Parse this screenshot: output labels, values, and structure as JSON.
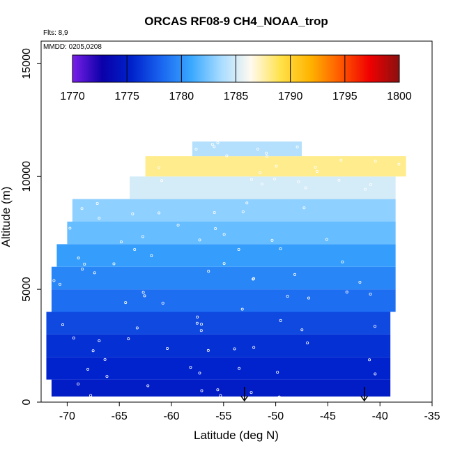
{
  "chart_data": {
    "type": "heatmap",
    "title": "ORCAS RF08-9 CH4_NOAA_trop",
    "xlabel": "Latitude (deg N)",
    "ylabel": "Altitude (m)",
    "xlim": [
      -72.5,
      -35
    ],
    "ylim": [
      0,
      16000
    ],
    "x_ticks": [
      -70,
      -65,
      -60,
      -55,
      -50,
      -45,
      -40,
      -35
    ],
    "y_ticks": [
      0,
      5000,
      10000,
      15000
    ],
    "annotations": {
      "flights": "Flts: 8,9",
      "dates": "MMDD: 0205,0208"
    },
    "colorbar": {
      "min": 1770,
      "max": 1800,
      "ticks": [
        1770,
        1775,
        1780,
        1785,
        1790,
        1795,
        1800
      ],
      "colors": [
        "#7a1fe8",
        "#0a00a8",
        "#0022cc",
        "#1a66f0",
        "#3aa8ff",
        "#a8dcff",
        "#fffaf0",
        "#ffe24a",
        "#ffb400",
        "#ff5a00",
        "#f00000",
        "#8a1010"
      ]
    },
    "arrow_latitudes": [
      -53,
      -41.5
    ],
    "altitude_profile": [
      {
        "altitude": 500,
        "lat_min": -71.5,
        "lat_max": -39,
        "value": 1775
      },
      {
        "altitude": 1500,
        "lat_min": -72,
        "lat_max": -39,
        "value": 1775.5
      },
      {
        "altitude": 2500,
        "lat_min": -72,
        "lat_max": -39,
        "value": 1776
      },
      {
        "altitude": 3500,
        "lat_min": -72,
        "lat_max": -39,
        "value": 1777
      },
      {
        "altitude": 4500,
        "lat_min": -71.5,
        "lat_max": -38.5,
        "value": 1778.5
      },
      {
        "altitude": 5500,
        "lat_min": -71.5,
        "lat_max": -38.5,
        "value": 1779.5
      },
      {
        "altitude": 6500,
        "lat_min": -71,
        "lat_max": -38.5,
        "value": 1780.5
      },
      {
        "altitude": 7500,
        "lat_min": -70,
        "lat_max": -38.5,
        "value": 1782
      },
      {
        "altitude": 8500,
        "lat_min": -69.5,
        "lat_max": -38.5,
        "value": 1783
      },
      {
        "altitude": 9500,
        "lat_min": -64,
        "lat_max": -38.5,
        "value": 1785
      },
      {
        "altitude": 10500,
        "lat_min": -62.5,
        "lat_max": -37.5,
        "value": 1788
      },
      {
        "altitude": 11300,
        "lat_min": -58,
        "lat_max": -47.5,
        "value": 1784
      }
    ]
  }
}
